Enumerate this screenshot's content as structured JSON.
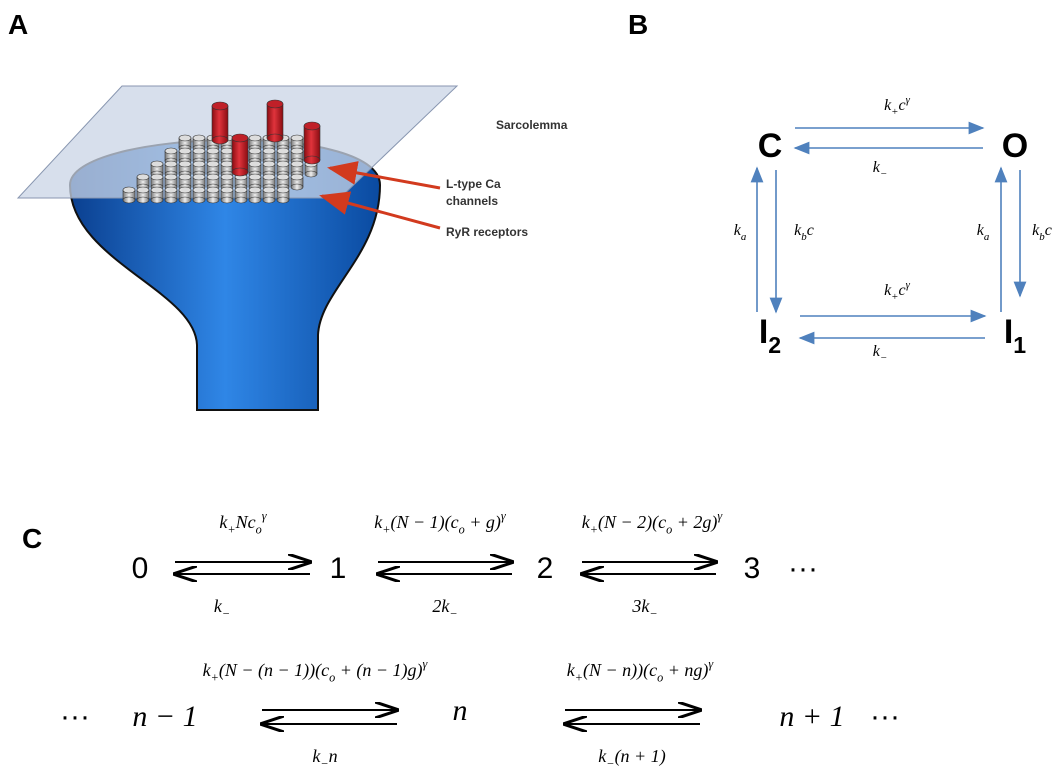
{
  "panels": {
    "a": "A",
    "b": "B",
    "c": "C"
  },
  "panel_a": {
    "sarcolemma": "Sarcolemma",
    "ltype": [
      "L-type Ca",
      "channels"
    ],
    "ryr": "RyR receptors"
  },
  "panel_b": {
    "labels": [
      [
        {
          "t": "C"
        }
      ],
      [
        {
          "t": "O"
        }
      ],
      [
        {
          "t": "I"
        },
        {
          "sub": "2"
        }
      ],
      [
        {
          "t": "I"
        },
        {
          "sub": "1"
        }
      ],
      [
        {
          "t": "k"
        },
        {
          "sub": "+"
        },
        {
          "t": "c"
        },
        {
          "sup": "γ"
        }
      ],
      [
        {
          "t": "k"
        },
        {
          "sub": "−"
        }
      ],
      [
        {
          "t": "k"
        },
        {
          "sub": "a"
        }
      ],
      [
        {
          "t": "k"
        },
        {
          "sub": "b"
        },
        {
          "t": "c"
        }
      ],
      [
        {
          "t": "k"
        },
        {
          "sub": "a"
        }
      ],
      [
        {
          "t": "k"
        },
        {
          "sub": "b"
        },
        {
          "t": "c"
        }
      ],
      [
        {
          "t": "k"
        },
        {
          "sub": "+"
        },
        {
          "t": "c"
        },
        {
          "sup": "γ"
        }
      ],
      [
        {
          "t": "k"
        },
        {
          "sub": "−"
        }
      ]
    ]
  },
  "panel_c": {
    "labels": [
      [
        {
          "t": "0"
        }
      ],
      [
        {
          "t": "1"
        }
      ],
      [
        {
          "t": "2"
        }
      ],
      [
        {
          "t": "3"
        }
      ],
      [
        {
          "t": "···"
        }
      ],
      [
        {
          "t": "k"
        },
        {
          "sub": "+"
        },
        {
          "t": "Nc"
        },
        {
          "sub": "o"
        },
        {
          "sup": "γ"
        }
      ],
      [
        {
          "t": "k"
        },
        {
          "sub": "−"
        }
      ],
      [
        {
          "t": "k"
        },
        {
          "sub": "+"
        },
        {
          "t": "(N − 1)(c"
        },
        {
          "sub": "o"
        },
        {
          "t": " + g)"
        },
        {
          "sup": "γ"
        }
      ],
      [
        {
          "t": "2k"
        },
        {
          "sub": "−"
        }
      ],
      [
        {
          "t": "k"
        },
        {
          "sub": "+"
        },
        {
          "t": "(N − 2)(c"
        },
        {
          "sub": "o"
        },
        {
          "t": " + 2g)"
        },
        {
          "sup": "γ"
        }
      ],
      [
        {
          "t": "3k"
        },
        {
          "sub": "−"
        }
      ],
      [
        {
          "t": "···"
        }
      ],
      [
        {
          "t": "n − 1"
        }
      ],
      [
        {
          "t": "n"
        }
      ],
      [
        {
          "t": "n + 1"
        }
      ],
      [
        {
          "t": "···"
        }
      ],
      [
        {
          "t": "k"
        },
        {
          "sub": "+"
        },
        {
          "t": "(N − (n − 1))(c"
        },
        {
          "sub": "o"
        },
        {
          "t": " + (n − 1)g)"
        },
        {
          "sup": "γ"
        }
      ],
      [
        {
          "t": "k"
        },
        {
          "sub": "−"
        },
        {
          "t": "n"
        }
      ],
      [
        {
          "t": "k"
        },
        {
          "sub": "+"
        },
        {
          "t": "(N − n))(c"
        },
        {
          "sub": "o"
        },
        {
          "t": " + ng)"
        },
        {
          "sup": "γ"
        }
      ],
      [
        {
          "t": "k"
        },
        {
          "sub": "−"
        },
        {
          "t": "(n + 1)"
        }
      ]
    ]
  }
}
